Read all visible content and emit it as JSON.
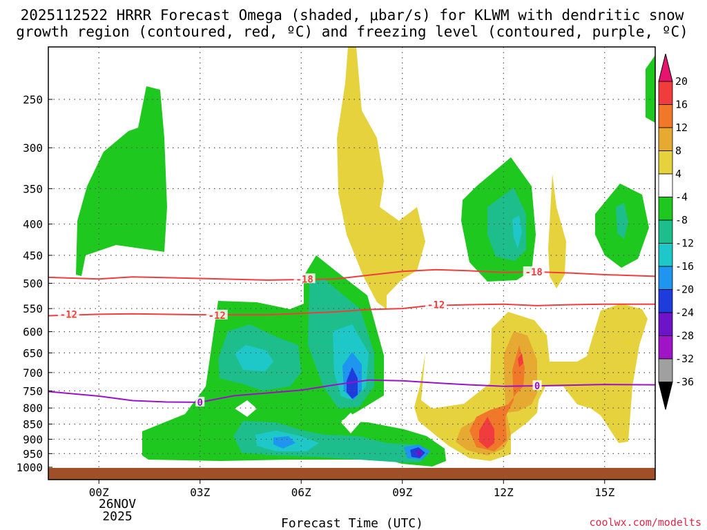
{
  "chart_data": {
    "type": "heatmap",
    "title_line1": "2025112522 HRRR Forecast Omega (shaded, μbar/s) for KLWM with dendritic snow",
    "title_line2": "growth region (contoured, red, ºC) and freezing level (contoured, purple, ºC)",
    "xlabel": "Forecast Time (UTC)",
    "date_label_line1": "26NOV",
    "date_label_line2": "2025",
    "credit": "coolwx.com/modelts",
    "x_hours": [
      -1.5,
      16.5
    ],
    "x_ticks": [
      {
        "h": 0,
        "label": "00Z"
      },
      {
        "h": 3,
        "label": "03Z"
      },
      {
        "h": 6,
        "label": "06Z"
      },
      {
        "h": 9,
        "label": "09Z"
      },
      {
        "h": 12,
        "label": "12Z"
      },
      {
        "h": 15,
        "label": "15Z"
      }
    ],
    "y_levels": [
      250,
      300,
      350,
      400,
      450,
      500,
      550,
      600,
      650,
      700,
      750,
      800,
      850,
      900,
      950,
      1000
    ],
    "y_labels": [
      "250",
      "300",
      "350",
      "400",
      "450",
      "500",
      "550",
      "600",
      "650",
      "700",
      "750",
      "800",
      "850",
      "900",
      "950",
      "1000"
    ],
    "colorbar": {
      "labels": [
        "20",
        "16",
        "12",
        "8",
        "4",
        "-4",
        "-8",
        "-12",
        "-16",
        "-20",
        "-24",
        "-28",
        "-32",
        "-36"
      ],
      "colors": [
        "#f03c3c",
        "#f07828",
        "#e6aa32",
        "#e6d23c",
        "#ffffff",
        "#1ec81e",
        "#1ebe8c",
        "#1ec8c8",
        "#1e96f0",
        "#1e3cdc",
        "#6e14c8",
        "#a014c8",
        "#a0a0a0"
      ],
      "top_arrow_color": "#e6146e",
      "bottom_arrow_color": "#000000"
    },
    "contours": [
      {
        "name": "-18",
        "color": "#f03c3c",
        "points": [
          [
            -1.5,
            489
          ],
          [
            0,
            492
          ],
          [
            1,
            488
          ],
          [
            3,
            491
          ],
          [
            5,
            494
          ],
          [
            7,
            492
          ],
          [
            8,
            485
          ],
          [
            9,
            478
          ],
          [
            10,
            475
          ],
          [
            11,
            477
          ],
          [
            12,
            480
          ],
          [
            13,
            479
          ],
          [
            14,
            481
          ],
          [
            15,
            484
          ],
          [
            16.5,
            487
          ]
        ],
        "labels": [
          {
            "h": 6.1,
            "p": 492,
            "text": "-18"
          },
          {
            "h": 12.9,
            "p": 479,
            "text": "-18"
          }
        ]
      },
      {
        "name": "-12",
        "color": "#f03c3c",
        "points": [
          [
            -1.5,
            565
          ],
          [
            0,
            562
          ],
          [
            1,
            561
          ],
          [
            3,
            563
          ],
          [
            5,
            563
          ],
          [
            7,
            557
          ],
          [
            8,
            552
          ],
          [
            9,
            550
          ],
          [
            9.8,
            544
          ],
          [
            11,
            542
          ],
          [
            12,
            541
          ],
          [
            13,
            544
          ],
          [
            14,
            542
          ],
          [
            15,
            541
          ],
          [
            16.5,
            541
          ]
        ],
        "labels": [
          {
            "h": -0.9,
            "p": 562,
            "text": "-12"
          },
          {
            "h": 3.5,
            "p": 564,
            "text": "-12"
          },
          {
            "h": 10.0,
            "p": 542,
            "text": "-12"
          }
        ]
      },
      {
        "name": "0",
        "color": "#9b10c8",
        "points": [
          [
            -1.5,
            752
          ],
          [
            0,
            765
          ],
          [
            1,
            778
          ],
          [
            2,
            782
          ],
          [
            3,
            783
          ],
          [
            4,
            764
          ],
          [
            6,
            748
          ],
          [
            7,
            733
          ],
          [
            8,
            720
          ],
          [
            9,
            722
          ],
          [
            10,
            728
          ],
          [
            11,
            733
          ],
          [
            12,
            737
          ],
          [
            13,
            736
          ],
          [
            15,
            732
          ],
          [
            16.5,
            733
          ]
        ],
        "labels": [
          {
            "h": 3.0,
            "p": 783,
            "text": "0"
          },
          {
            "h": 13.0,
            "p": 736,
            "text": "0"
          }
        ]
      }
    ],
    "ground_level_hpa": 1013,
    "ground_color": "#a05028"
  }
}
